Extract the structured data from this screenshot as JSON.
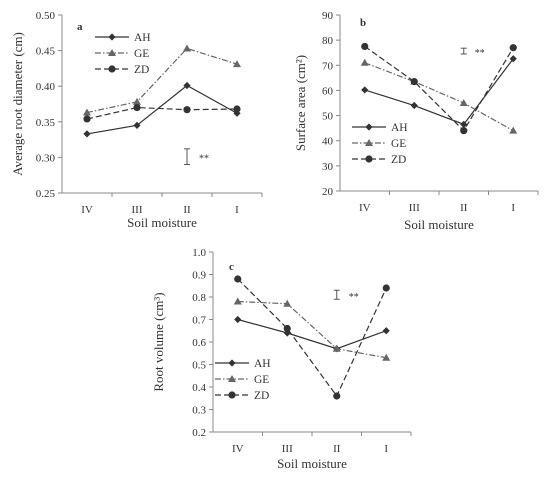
{
  "chart_data": [
    {
      "type": "line",
      "panel_label": "a",
      "categories": [
        "IV",
        "III",
        "II",
        "I"
      ],
      "xlabel": "Soil moisture",
      "ylabel": "Average root diameter (cm)",
      "ylim": [
        0.25,
        0.5
      ],
      "yticks": [
        "0.25",
        "0.30",
        "0.35",
        "0.40",
        "0.45",
        "0.50"
      ],
      "legend": "top-left",
      "error_bar_label": "**",
      "error_bar_range": [
        0.29,
        0.312
      ],
      "error_bar_category": "II",
      "series": [
        {
          "name": "AH",
          "values": [
            0.333,
            0.345,
            0.401,
            0.362
          ],
          "color": "#333333",
          "dash": "solid",
          "marker": "diamond"
        },
        {
          "name": "GE",
          "values": [
            0.363,
            0.378,
            0.453,
            0.431
          ],
          "color": "#666666",
          "dash": "dashdot",
          "marker": "triangle"
        },
        {
          "name": "ZD",
          "values": [
            0.354,
            0.37,
            0.367,
            0.368
          ],
          "color": "#333333",
          "dash": "dash",
          "marker": "circle"
        }
      ]
    },
    {
      "type": "line",
      "panel_label": "b",
      "categories": [
        "IV",
        "III",
        "II",
        "I"
      ],
      "xlabel": "Soil moisture",
      "ylabel": "Surface area (cm²)",
      "ylim": [
        20,
        90
      ],
      "yticks": [
        "20",
        "30",
        "40",
        "50",
        "60",
        "70",
        "80",
        "90"
      ],
      "legend": "bottom-left",
      "error_bar_label": "**",
      "error_bar_range": [
        74.5,
        76.8
      ],
      "error_bar_category": "II",
      "series": [
        {
          "name": "AH",
          "values": [
            60.2,
            54.0,
            46.5,
            72.6
          ],
          "color": "#333333",
          "dash": "solid",
          "marker": "diamond"
        },
        {
          "name": "GE",
          "values": [
            71.0,
            63.5,
            55.0,
            44.0
          ],
          "color": "#666666",
          "dash": "dashdot",
          "marker": "triangle"
        },
        {
          "name": "ZD",
          "values": [
            77.5,
            63.5,
            44.0,
            77.0
          ],
          "color": "#333333",
          "dash": "dash",
          "marker": "circle"
        }
      ]
    },
    {
      "type": "line",
      "panel_label": "c",
      "categories": [
        "IV",
        "III",
        "II",
        "I"
      ],
      "xlabel": "Soil moisture",
      "ylabel": "Root volume (cm³)",
      "ylim": [
        0.2,
        1.0
      ],
      "yticks": [
        "0.2",
        "0.3",
        "0.4",
        "0.5",
        "0.6",
        "0.7",
        "0.8",
        "0.9",
        "1.0"
      ],
      "legend": "bottom-left",
      "error_bar_label": "**",
      "error_bar_range": [
        0.79,
        0.83
      ],
      "error_bar_category": "II",
      "series": [
        {
          "name": "AH",
          "values": [
            0.7,
            0.64,
            0.57,
            0.65
          ],
          "color": "#333333",
          "dash": "solid",
          "marker": "diamond"
        },
        {
          "name": "GE",
          "values": [
            0.78,
            0.77,
            0.57,
            0.53
          ],
          "color": "#666666",
          "dash": "dashdot",
          "marker": "triangle"
        },
        {
          "name": "ZD",
          "values": [
            0.88,
            0.66,
            0.36,
            0.84
          ],
          "color": "#333333",
          "dash": "dash",
          "marker": "circle"
        }
      ]
    }
  ]
}
